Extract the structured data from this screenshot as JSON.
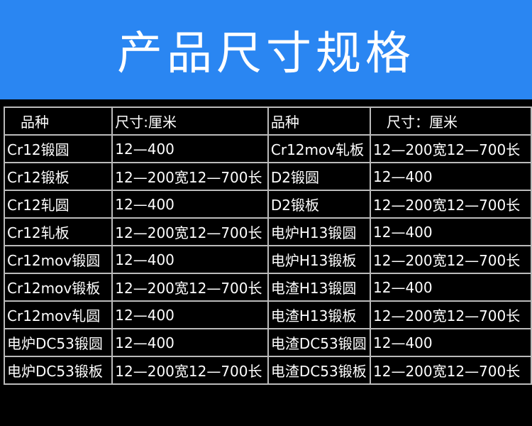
{
  "title": "产品尺寸规格",
  "headers": [
    "品种",
    "尺寸:厘米",
    "品种",
    "尺寸：厘米"
  ],
  "rows": [
    [
      "Cr12锻圆",
      "12—400",
      "Cr12mov轧板",
      "12—200宽12—700长"
    ],
    [
      "Cr12锻板",
      "12—200宽12—700长",
      "D2锻圆",
      "12—400"
    ],
    [
      "Cr12轧圆",
      "12—400",
      "D2锻板",
      "12—200宽12—700长"
    ],
    [
      "Cr12轧板",
      "12—200宽12—700长",
      "电炉H13锻圆",
      "12—400"
    ],
    [
      "Cr12mov锻圆",
      "12—400",
      "电炉H13锻板",
      "12—200宽12—700长"
    ],
    [
      "Cr12mov锻板",
      "12—200宽12—700长",
      "电渣H13锻圆",
      "12—400"
    ],
    [
      "Cr12mov轧圆",
      "12—400",
      "电渣H13锻板",
      "12—200宽12—700长"
    ],
    [
      "电炉DC53锻圆",
      "12—400",
      "电渣DC53锻圆",
      "12—400"
    ],
    [
      "电炉DC53锻板",
      "12—200宽12—700长",
      "电渣DC53锻板",
      "12—200宽12—700长"
    ]
  ],
  "colors": {
    "banner": "#2a86f2",
    "background": "#000000",
    "text": "#ffffff"
  }
}
